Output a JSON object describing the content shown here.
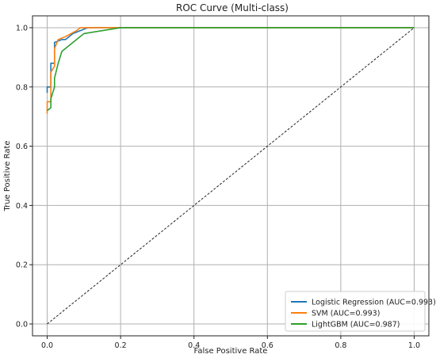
{
  "chart_data": {
    "type": "line",
    "title": "ROC Curve (Multi-class)",
    "xlabel": "False Positive Rate",
    "ylabel": "True Positive Rate",
    "xlim": [
      -0.04,
      1.04
    ],
    "ylim": [
      -0.04,
      1.04
    ],
    "xticks": [
      "0.0",
      "0.2",
      "0.4",
      "0.6",
      "0.8",
      "1.0"
    ],
    "yticks": [
      "0.0",
      "0.2",
      "0.4",
      "0.6",
      "0.8",
      "1.0"
    ],
    "grid": true,
    "legend_position": "bottom-right",
    "series": [
      {
        "name": "Logistic Regression (AUC=0.993)",
        "color": "#1f77b4",
        "x": [
          0.0,
          0.0,
          0.01,
          0.01,
          0.02,
          0.02,
          0.04,
          0.05,
          0.07,
          0.09,
          0.11,
          0.2,
          1.0
        ],
        "y": [
          0.78,
          0.8,
          0.8,
          0.88,
          0.88,
          0.95,
          0.96,
          0.96,
          0.98,
          0.99,
          1.0,
          1.0,
          1.0
        ]
      },
      {
        "name": "SVM (AUC=0.993)",
        "color": "#ff7f0e",
        "x": [
          0.0,
          0.0,
          0.01,
          0.01,
          0.02,
          0.02,
          0.03,
          0.05,
          0.08,
          0.09,
          0.2,
          1.0
        ],
        "y": [
          0.71,
          0.75,
          0.75,
          0.85,
          0.87,
          0.93,
          0.96,
          0.97,
          0.99,
          1.0,
          1.0,
          1.0
        ]
      },
      {
        "name": "LightGBM (AUC=0.987)",
        "color": "#2ca02c",
        "x": [
          0.0,
          0.01,
          0.01,
          0.02,
          0.02,
          0.03,
          0.04,
          0.05,
          0.07,
          0.1,
          0.15,
          0.2,
          1.0
        ],
        "y": [
          0.72,
          0.73,
          0.76,
          0.8,
          0.83,
          0.88,
          0.92,
          0.93,
          0.95,
          0.98,
          0.99,
          1.0,
          1.0
        ]
      }
    ],
    "reference_line": {
      "x": [
        0.0,
        1.0
      ],
      "y": [
        0.0,
        1.0
      ],
      "style": "dashed",
      "color": "#222222"
    }
  }
}
